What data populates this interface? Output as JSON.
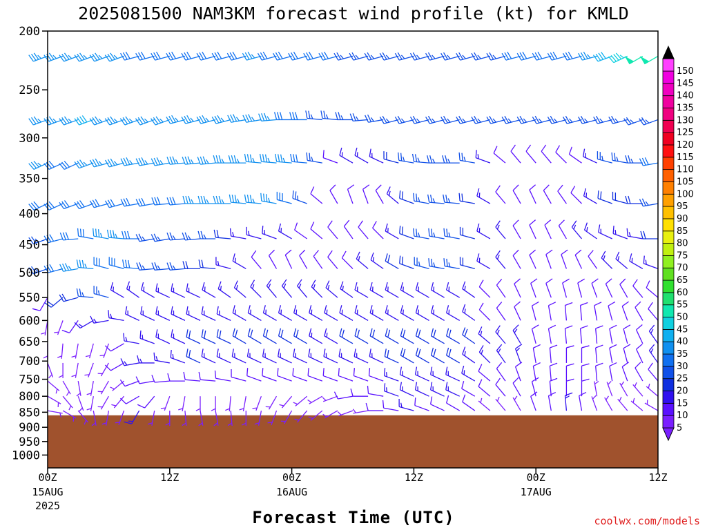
{
  "chart_data": {
    "type": "wind-barb-profile",
    "title": "2025081500 NAM3KM forecast wind profile (kt) for KMLD",
    "xlabel": "Forecast Time (UTC)",
    "ylabel": "",
    "y_axis": {
      "scale": "log-pressure",
      "range": [
        200,
        1050
      ],
      "ticks": [
        200,
        250,
        300,
        350,
        400,
        450,
        500,
        550,
        600,
        650,
        700,
        750,
        800,
        850,
        900,
        950,
        1000
      ]
    },
    "x_axis": {
      "range_hours": [
        0,
        60
      ],
      "ticks": [
        {
          "hour": 0,
          "label1": "00Z",
          "label2": "15AUG",
          "label3": "2025"
        },
        {
          "hour": 12,
          "label1": "12Z",
          "label2": "",
          "label3": ""
        },
        {
          "hour": 24,
          "label1": "00Z",
          "label2": "16AUG",
          "label3": ""
        },
        {
          "hour": 36,
          "label1": "12Z",
          "label2": "",
          "label3": ""
        },
        {
          "hour": 48,
          "label1": "00Z",
          "label2": "17AUG",
          "label3": ""
        },
        {
          "hour": 60,
          "label1": "12Z",
          "label2": "",
          "label3": ""
        }
      ]
    },
    "colorbar": {
      "unit": "kt",
      "levels": [
        5,
        10,
        15,
        20,
        25,
        30,
        35,
        40,
        45,
        50,
        55,
        60,
        65,
        70,
        75,
        80,
        85,
        90,
        95,
        100,
        105,
        110,
        115,
        120,
        125,
        130,
        135,
        140,
        145,
        150
      ],
      "colors": [
        "#7a1fff",
        "#5a10ff",
        "#3010f0",
        "#1030e0",
        "#1050e8",
        "#1070f0",
        "#1090f0",
        "#10b0f0",
        "#10d0e0",
        "#10e8b0",
        "#20e070",
        "#30e030",
        "#60e020",
        "#90f020",
        "#c0f010",
        "#e8f010",
        "#ffe000",
        "#ffc000",
        "#ffa000",
        "#ff8000",
        "#ff6000",
        "#ff4000",
        "#ff1010",
        "#f00020",
        "#f00050",
        "#f00080",
        "#f000a0",
        "#f000c0",
        "#f000e0",
        "#ff40ff"
      ]
    },
    "terrain": {
      "surface_pressure_hpa": 860,
      "color": "#a0522d"
    },
    "wind_levels_hpa": [
      220,
      280,
      330,
      385,
      440,
      493,
      550,
      600,
      655,
      705,
      755,
      800,
      845
    ],
    "wind_times_hours": [
      0,
      1.5,
      3,
      4.5,
      6,
      7.5,
      9,
      10.5,
      12,
      13.5,
      15,
      16.5,
      18,
      19.5,
      21,
      22.5,
      24,
      25.5,
      27,
      28.5,
      30,
      31.5,
      33,
      34.5,
      36,
      37.5,
      39,
      40.5,
      42,
      43.5,
      45,
      46.5,
      48,
      49.5,
      51,
      52.5,
      54,
      55.5,
      57,
      58.5,
      60
    ],
    "wind_speed_kt_by_level": [
      [
        35,
        35,
        35,
        35,
        35,
        35,
        30,
        30,
        30,
        30,
        30,
        30,
        30,
        30,
        35,
        30,
        30,
        30,
        30,
        30,
        25,
        25,
        25,
        25,
        25,
        25,
        25,
        25,
        25,
        25,
        25,
        30,
        30,
        30,
        30,
        30,
        35,
        40,
        45,
        50,
        50
      ],
      [
        35,
        35,
        35,
        40,
        35,
        35,
        35,
        35,
        35,
        35,
        35,
        35,
        35,
        35,
        35,
        35,
        30,
        30,
        25,
        25,
        25,
        25,
        25,
        25,
        25,
        25,
        25,
        25,
        25,
        25,
        25,
        25,
        25,
        25,
        25,
        25,
        25,
        25,
        25,
        25,
        25
      ],
      [
        35,
        30,
        30,
        35,
        35,
        35,
        35,
        35,
        35,
        35,
        35,
        35,
        35,
        35,
        35,
        35,
        35,
        30,
        25,
        10,
        15,
        15,
        15,
        20,
        25,
        25,
        25,
        25,
        25,
        15,
        10,
        10,
        10,
        10,
        10,
        10,
        15,
        25,
        25,
        25,
        30
      ],
      [
        30,
        30,
        30,
        30,
        30,
        30,
        30,
        30,
        30,
        30,
        35,
        35,
        35,
        35,
        35,
        35,
        30,
        25,
        10,
        10,
        10,
        10,
        10,
        15,
        20,
        25,
        25,
        25,
        20,
        15,
        10,
        10,
        10,
        10,
        10,
        10,
        15,
        20,
        20,
        20,
        25
      ],
      [
        25,
        30,
        30,
        30,
        35,
        35,
        30,
        25,
        25,
        25,
        25,
        25,
        20,
        15,
        15,
        15,
        15,
        10,
        10,
        10,
        10,
        10,
        10,
        15,
        20,
        25,
        25,
        25,
        20,
        15,
        15,
        10,
        10,
        10,
        10,
        15,
        15,
        15,
        15,
        15,
        20
      ],
      [
        25,
        30,
        35,
        35,
        30,
        30,
        30,
        25,
        25,
        25,
        20,
        20,
        15,
        15,
        10,
        10,
        10,
        10,
        10,
        10,
        10,
        15,
        15,
        20,
        20,
        25,
        25,
        25,
        20,
        15,
        15,
        10,
        10,
        10,
        10,
        10,
        10,
        15,
        15,
        15,
        15
      ],
      [
        10,
        20,
        20,
        25,
        25,
        15,
        15,
        15,
        15,
        15,
        15,
        15,
        15,
        15,
        15,
        15,
        15,
        15,
        15,
        15,
        15,
        15,
        15,
        15,
        15,
        15,
        15,
        15,
        15,
        10,
        10,
        10,
        10,
        10,
        10,
        10,
        10,
        10,
        10,
        10,
        10
      ],
      [
        5,
        5,
        10,
        15,
        15,
        15,
        15,
        15,
        15,
        15,
        15,
        15,
        15,
        15,
        15,
        15,
        15,
        15,
        15,
        15,
        15,
        15,
        15,
        15,
        15,
        15,
        15,
        15,
        15,
        10,
        10,
        10,
        10,
        10,
        10,
        10,
        10,
        10,
        10,
        10,
        10
      ],
      [
        5,
        5,
        5,
        5,
        5,
        10,
        15,
        15,
        15,
        15,
        20,
        20,
        20,
        20,
        20,
        20,
        20,
        20,
        15,
        15,
        20,
        20,
        20,
        20,
        20,
        20,
        20,
        20,
        20,
        15,
        15,
        15,
        10,
        10,
        10,
        10,
        10,
        10,
        10,
        10,
        15
      ],
      [
        5,
        5,
        5,
        5,
        5,
        10,
        15,
        15,
        15,
        15,
        20,
        15,
        15,
        15,
        15,
        15,
        15,
        15,
        15,
        15,
        15,
        15,
        15,
        20,
        20,
        20,
        20,
        20,
        15,
        15,
        15,
        15,
        10,
        10,
        10,
        10,
        10,
        10,
        10,
        10,
        15
      ],
      [
        5,
        5,
        5,
        5,
        5,
        5,
        10,
        10,
        10,
        10,
        10,
        10,
        10,
        10,
        10,
        10,
        10,
        10,
        10,
        10,
        10,
        10,
        10,
        15,
        15,
        15,
        15,
        15,
        15,
        10,
        10,
        10,
        10,
        10,
        10,
        10,
        10,
        10,
        10,
        10,
        10
      ],
      [
        5,
        5,
        5,
        5,
        5,
        5,
        10,
        10,
        5,
        5,
        5,
        5,
        5,
        5,
        5,
        5,
        5,
        5,
        5,
        5,
        10,
        10,
        10,
        15,
        15,
        15,
        15,
        15,
        10,
        10,
        10,
        10,
        10,
        10,
        10,
        10,
        5,
        5,
        5,
        5,
        5
      ],
      [
        5,
        5,
        5,
        5,
        5,
        5,
        15,
        5,
        5,
        5,
        5,
        5,
        5,
        5,
        5,
        5,
        5,
        5,
        5,
        5,
        5,
        5,
        10,
        10,
        15,
        10,
        10,
        10,
        10,
        5,
        5,
        5,
        10,
        10,
        15,
        10,
        5,
        5,
        5,
        5,
        5
      ]
    ],
    "wind_direction_deg_by_level": [
      [
        250,
        250,
        250,
        250,
        250,
        250,
        255,
        255,
        255,
        255,
        255,
        255,
        255,
        255,
        255,
        255,
        255,
        255,
        255,
        255,
        255,
        255,
        255,
        255,
        255,
        255,
        255,
        255,
        255,
        255,
        255,
        255,
        255,
        255,
        255,
        255,
        255,
        250,
        245,
        240,
        240
      ],
      [
        250,
        250,
        250,
        250,
        250,
        250,
        250,
        250,
        250,
        255,
        255,
        255,
        255,
        260,
        260,
        265,
        270,
        270,
        275,
        275,
        270,
        265,
        260,
        255,
        255,
        255,
        255,
        255,
        255,
        255,
        255,
        255,
        255,
        255,
        255,
        255,
        255,
        255,
        255,
        250,
        250
      ],
      [
        245,
        245,
        245,
        250,
        255,
        255,
        260,
        260,
        260,
        265,
        265,
        265,
        270,
        270,
        275,
        275,
        275,
        275,
        280,
        290,
        300,
        300,
        295,
        285,
        280,
        275,
        270,
        270,
        280,
        290,
        310,
        320,
        320,
        320,
        315,
        305,
        295,
        285,
        280,
        270,
        260
      ],
      [
        245,
        245,
        250,
        250,
        255,
        255,
        260,
        260,
        265,
        265,
        270,
        270,
        270,
        275,
        275,
        280,
        285,
        290,
        310,
        330,
        340,
        340,
        330,
        310,
        290,
        280,
        275,
        275,
        280,
        300,
        320,
        330,
        335,
        330,
        325,
        315,
        300,
        290,
        285,
        270,
        260
      ],
      [
        250,
        255,
        265,
        280,
        280,
        275,
        270,
        260,
        260,
        265,
        265,
        270,
        275,
        280,
        285,
        290,
        300,
        305,
        310,
        320,
        325,
        320,
        315,
        300,
        290,
        280,
        280,
        280,
        285,
        300,
        320,
        330,
        335,
        335,
        330,
        320,
        305,
        295,
        290,
        280,
        270
      ],
      [
        250,
        255,
        260,
        275,
        285,
        285,
        275,
        265,
        265,
        265,
        270,
        275,
        285,
        300,
        320,
        330,
        335,
        330,
        325,
        320,
        315,
        310,
        305,
        300,
        290,
        285,
        280,
        280,
        285,
        300,
        320,
        330,
        335,
        340,
        340,
        335,
        325,
        315,
        310,
        300,
        290
      ],
      [
        210,
        230,
        255,
        275,
        285,
        300,
        305,
        300,
        295,
        295,
        295,
        300,
        305,
        310,
        315,
        320,
        320,
        320,
        315,
        310,
        305,
        300,
        300,
        300,
        300,
        300,
        300,
        300,
        305,
        315,
        325,
        335,
        340,
        340,
        345,
        345,
        340,
        335,
        330,
        320,
        310
      ],
      [
        190,
        200,
        215,
        240,
        260,
        280,
        295,
        295,
        295,
        295,
        295,
        295,
        295,
        300,
        300,
        300,
        300,
        300,
        300,
        300,
        300,
        300,
        300,
        300,
        300,
        300,
        300,
        300,
        305,
        315,
        325,
        335,
        345,
        350,
        355,
        355,
        350,
        345,
        340,
        330,
        320
      ],
      [
        180,
        185,
        190,
        195,
        200,
        240,
        280,
        290,
        295,
        295,
        295,
        295,
        295,
        300,
        300,
        300,
        300,
        300,
        300,
        300,
        300,
        300,
        300,
        300,
        300,
        300,
        300,
        300,
        305,
        310,
        320,
        330,
        345,
        350,
        355,
        355,
        355,
        350,
        345,
        335,
        325
      ],
      [
        160,
        180,
        190,
        200,
        210,
        240,
        260,
        270,
        280,
        290,
        295,
        295,
        295,
        295,
        295,
        295,
        295,
        295,
        295,
        295,
        295,
        295,
        295,
        295,
        300,
        300,
        300,
        300,
        305,
        315,
        325,
        340,
        350,
        355,
        360,
        360,
        355,
        350,
        345,
        335,
        325
      ],
      [
        130,
        150,
        170,
        190,
        210,
        230,
        250,
        260,
        265,
        270,
        275,
        275,
        280,
        285,
        290,
        290,
        290,
        290,
        290,
        290,
        290,
        290,
        290,
        290,
        295,
        295,
        295,
        295,
        300,
        310,
        325,
        340,
        350,
        355,
        360,
        360,
        355,
        350,
        340,
        330,
        320
      ],
      [
        120,
        140,
        160,
        190,
        210,
        220,
        240,
        220,
        200,
        190,
        180,
        180,
        185,
        190,
        200,
        210,
        220,
        230,
        240,
        250,
        260,
        270,
        280,
        290,
        295,
        295,
        295,
        295,
        300,
        310,
        320,
        330,
        345,
        355,
        360,
        360,
        350,
        340,
        330,
        320,
        310
      ],
      [
        100,
        120,
        140,
        170,
        190,
        200,
        210,
        190,
        180,
        175,
        170,
        170,
        175,
        180,
        190,
        200,
        210,
        220,
        230,
        240,
        250,
        260,
        270,
        280,
        285,
        290,
        295,
        300,
        305,
        310,
        320,
        330,
        340,
        350,
        355,
        350,
        340,
        330,
        320,
        310,
        300
      ]
    ]
  },
  "footer": {
    "credit": "coolwx.com/models"
  }
}
